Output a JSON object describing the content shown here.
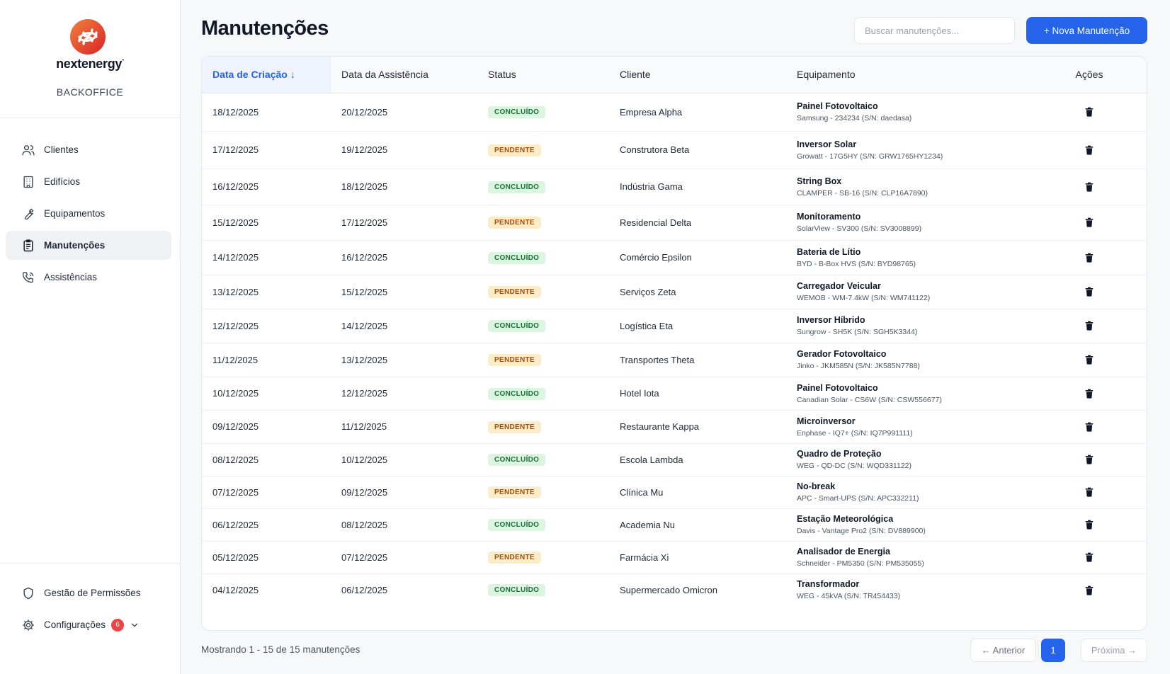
{
  "brand": {
    "name": "nextenergy",
    "trademark": "*",
    "subtitle": "BACKOFFICE"
  },
  "sidebar": {
    "items": [
      {
        "label": "Clientes",
        "icon": "users-icon",
        "active": false
      },
      {
        "label": "Edifícios",
        "icon": "building-icon",
        "active": false
      },
      {
        "label": "Equipamentos",
        "icon": "wrench-icon",
        "active": false
      },
      {
        "label": "Manutenções",
        "icon": "clipboard-icon",
        "active": true
      },
      {
        "label": "Assistências",
        "icon": "phone-icon",
        "active": false
      }
    ],
    "bottom": [
      {
        "label": "Gestão de Permissões",
        "icon": "shield-icon"
      },
      {
        "label": "Configurações",
        "icon": "gear-icon",
        "badge": "6"
      }
    ]
  },
  "header": {
    "title": "Manutenções",
    "search_placeholder": "Buscar manutenções...",
    "new_button": "+ Nova Manutenção"
  },
  "table": {
    "columns": {
      "created": "Data de Criação ↓",
      "assist": "Data da Assistência",
      "status": "Status",
      "client": "Cliente",
      "equipment": "Equipamento",
      "actions": "Ações"
    },
    "rows": [
      {
        "created": "18/12/2025",
        "assist": "20/12/2025",
        "status": "CONCLUÍDO",
        "client": "Empresa Alpha",
        "eq_name": "Painel Fotovoltaico",
        "eq_detail": "Samsung - 234234 (S/N: daedasa)"
      },
      {
        "created": "17/12/2025",
        "assist": "19/12/2025",
        "status": "PENDENTE",
        "client": "Construtora Beta",
        "eq_name": "Inversor Solar",
        "eq_detail": "Growatt - 17G5HY (S/N: GRW1765HY1234)"
      },
      {
        "created": "16/12/2025",
        "assist": "18/12/2025",
        "status": "CONCLUÍDO",
        "client": "Indústria Gama",
        "eq_name": "String Box",
        "eq_detail": "CLAMPER - SB-16 (S/N: CLP16A7890)"
      },
      {
        "created": "15/12/2025",
        "assist": "17/12/2025",
        "status": "PENDENTE",
        "client": "Residencial Delta",
        "eq_name": "Monitoramento",
        "eq_detail": "SolarView - SV300 (S/N: SV3008899)"
      },
      {
        "created": "14/12/2025",
        "assist": "16/12/2025",
        "status": "CONCLUÍDO",
        "client": "Comércio Epsilon",
        "eq_name": "Bateria de Lítio",
        "eq_detail": "BYD - B-Box HVS (S/N: BYD98765)"
      },
      {
        "created": "13/12/2025",
        "assist": "15/12/2025",
        "status": "PENDENTE",
        "client": "Serviços Zeta",
        "eq_name": "Carregador Veicular",
        "eq_detail": "WEMOB - WM-7.4kW (S/N: WM741122)"
      },
      {
        "created": "12/12/2025",
        "assist": "14/12/2025",
        "status": "CONCLUÍDO",
        "client": "Logística Eta",
        "eq_name": "Inversor Híbrido",
        "eq_detail": "Sungrow - SH5K (S/N: SGH5K3344)"
      },
      {
        "created": "11/12/2025",
        "assist": "13/12/2025",
        "status": "PENDENTE",
        "client": "Transportes Theta",
        "eq_name": "Gerador Fotovoltaico",
        "eq_detail": "Jinko - JKM585N (S/N: JK585N7788)"
      },
      {
        "created": "10/12/2025",
        "assist": "12/12/2025",
        "status": "CONCLUÍDO",
        "client": "Hotel Iota",
        "eq_name": "Painel Fotovoltaico",
        "eq_detail": "Canadian Solar - CS6W (S/N: CSW556677)"
      },
      {
        "created": "09/12/2025",
        "assist": "11/12/2025",
        "status": "PENDENTE",
        "client": "Restaurante Kappa",
        "eq_name": "Microinversor",
        "eq_detail": "Enphase - IQ7+ (S/N: IQ7P991111)"
      },
      {
        "created": "08/12/2025",
        "assist": "10/12/2025",
        "status": "CONCLUÍDO",
        "client": "Escola Lambda",
        "eq_name": "Quadro de Proteção",
        "eq_detail": "WEG - QD-DC (S/N: WQD331122)"
      },
      {
        "created": "07/12/2025",
        "assist": "09/12/2025",
        "status": "PENDENTE",
        "client": "Clínica Mu",
        "eq_name": "No-break",
        "eq_detail": "APC - Smart-UPS (S/N: APC332211)"
      },
      {
        "created": "06/12/2025",
        "assist": "08/12/2025",
        "status": "CONCLUÍDO",
        "client": "Academia Nu",
        "eq_name": "Estação Meteorológica",
        "eq_detail": "Davis - Vantage Pro2 (S/N: DV889900)"
      },
      {
        "created": "05/12/2025",
        "assist": "07/12/2025",
        "status": "PENDENTE",
        "client": "Farmácia Xi",
        "eq_name": "Analisador de Energia",
        "eq_detail": "Schneider - PM5350 (S/N: PM535055)"
      },
      {
        "created": "04/12/2025",
        "assist": "06/12/2025",
        "status": "CONCLUÍDO",
        "client": "Supermercado Omicron",
        "eq_name": "Transformador",
        "eq_detail": "WEG - 45kVA (S/N: TR454433)"
      }
    ]
  },
  "footer": {
    "showing": "Mostrando 1 - 15 de 15 manutenções",
    "prev": "← Anterior",
    "page": "1",
    "next": "Próxima →"
  },
  "colors": {
    "accent": "#2563eb",
    "done_bg": "#dcf5df",
    "done_text": "#16703a",
    "pending_bg": "#fdecc8",
    "pending_text": "#a34d0b",
    "badge": "#ef4444"
  }
}
